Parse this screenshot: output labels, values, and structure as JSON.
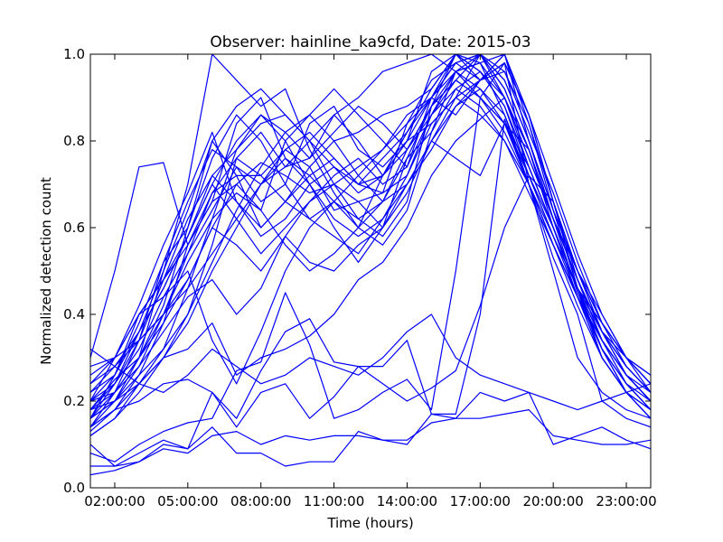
{
  "chart_data": {
    "type": "line",
    "title": "Observer: hainline_ka9cfd, Date: 2015-03",
    "xlabel": "Time (hours)",
    "ylabel": "Normalized detection count",
    "xlim": [
      "01:00:00",
      "24:00:00"
    ],
    "ylim": [
      0.0,
      1.0
    ],
    "x_ticks": [
      "02:00:00",
      "05:00:00",
      "08:00:00",
      "11:00:00",
      "14:00:00",
      "17:00:00",
      "20:00:00",
      "23:00:00"
    ],
    "y_ticks": [
      "0.0",
      "0.2",
      "0.4",
      "0.6",
      "0.8",
      "1.0"
    ],
    "grid": false,
    "legend": "none",
    "series_color": "#0000ff",
    "x": [
      "00:00:00",
      "01:00:00",
      "02:00:00",
      "03:00:00",
      "04:00:00",
      "05:00:00",
      "06:00:00",
      "07:00:00",
      "08:00:00",
      "09:00:00",
      "10:00:00",
      "11:00:00",
      "12:00:00",
      "13:00:00",
      "14:00:00",
      "15:00:00",
      "16:00:00",
      "17:00:00",
      "18:00:00",
      "19:00:00",
      "20:00:00",
      "21:00:00",
      "22:00:00",
      "23:00:00",
      "24:00:00"
    ],
    "series": [
      {
        "values": [
          0.06,
          0.03,
          0.04,
          0.06,
          0.09,
          0.08,
          0.12,
          0.13,
          0.1,
          0.12,
          0.11,
          0.12,
          0.12,
          0.11,
          0.1,
          0.17,
          0.16,
          0.16,
          0.17,
          0.18,
          0.12,
          0.11,
          0.1,
          0.1,
          0.11
        ]
      },
      {
        "values": [
          0.05,
          0.05,
          0.05,
          0.08,
          0.11,
          0.09,
          0.14,
          0.08,
          0.08,
          0.05,
          0.06,
          0.06,
          0.13,
          0.11,
          0.11,
          0.15,
          0.16,
          0.22,
          0.2,
          0.22,
          0.1,
          0.12,
          0.14,
          0.11,
          0.09
        ]
      },
      {
        "values": [
          0.1,
          0.08,
          0.06,
          0.1,
          0.13,
          0.15,
          0.16,
          0.27,
          0.29,
          0.45,
          0.33,
          0.16,
          0.18,
          0.22,
          0.25,
          0.18,
          0.5,
          0.9,
          0.98,
          0.7,
          0.53,
          0.4,
          0.2,
          0.16,
          0.14
        ]
      },
      {
        "values": [
          0.12,
          0.1,
          0.05,
          0.06,
          0.1,
          0.09,
          0.22,
          0.14,
          0.22,
          0.24,
          0.16,
          0.21,
          0.28,
          0.28,
          0.34,
          0.17,
          0.17,
          0.4,
          0.85,
          0.7,
          0.5,
          0.3,
          0.22,
          0.18,
          0.16
        ]
      },
      {
        "values": [
          0.15,
          0.13,
          0.18,
          0.2,
          0.24,
          0.25,
          0.22,
          0.16,
          0.27,
          0.36,
          0.39,
          0.29,
          0.28,
          0.24,
          0.2,
          0.23,
          0.27,
          0.42,
          0.6,
          0.72,
          0.66,
          0.46,
          0.3,
          0.22,
          0.18
        ]
      },
      {
        "values": [
          0.2,
          0.16,
          0.2,
          0.24,
          0.3,
          0.32,
          0.38,
          0.26,
          0.3,
          0.32,
          0.35,
          0.4,
          0.48,
          0.52,
          0.6,
          0.72,
          0.8,
          0.85,
          0.9,
          0.78,
          0.62,
          0.45,
          0.32,
          0.24,
          0.2
        ]
      },
      {
        "values": [
          0.28,
          0.22,
          0.28,
          0.34,
          0.4,
          0.48,
          0.6,
          0.7,
          0.75,
          0.72,
          0.68,
          0.7,
          0.74,
          0.78,
          0.84,
          0.9,
          0.96,
          0.98,
          1.0,
          0.86,
          0.66,
          0.48,
          0.34,
          0.26,
          0.22
        ]
      },
      {
        "values": [
          0.38,
          0.3,
          0.5,
          0.74,
          0.75,
          0.56,
          0.68,
          0.72,
          0.72,
          0.78,
          0.74,
          0.64,
          0.66,
          0.68,
          0.72,
          0.86,
          0.96,
          1.0,
          0.92,
          0.78,
          0.6,
          0.44,
          0.3,
          0.22,
          0.16
        ]
      },
      {
        "values": [
          0.2,
          0.18,
          0.25,
          0.3,
          0.4,
          0.52,
          0.62,
          0.68,
          0.64,
          0.8,
          0.86,
          0.92,
          0.86,
          0.8,
          0.74,
          0.9,
          0.98,
          0.94,
          0.96,
          0.84,
          0.64,
          0.5,
          0.4,
          0.3,
          0.24
        ]
      },
      {
        "values": [
          0.22,
          0.16,
          0.26,
          0.4,
          0.48,
          0.58,
          0.72,
          0.78,
          0.84,
          0.86,
          0.8,
          0.7,
          0.62,
          0.58,
          0.66,
          0.88,
          1.0,
          0.96,
          0.88,
          0.72,
          0.58,
          0.44,
          0.34,
          0.26,
          0.2
        ]
      },
      {
        "values": [
          0.18,
          0.2,
          0.22,
          0.3,
          0.5,
          0.7,
          1.0,
          0.94,
          0.88,
          0.92,
          0.78,
          0.68,
          0.6,
          0.72,
          0.8,
          0.9,
          1.0,
          0.98,
          0.86,
          0.7,
          0.56,
          0.42,
          0.3,
          0.22,
          0.18
        ]
      },
      {
        "values": [
          0.16,
          0.14,
          0.18,
          0.26,
          0.38,
          0.56,
          0.66,
          0.84,
          0.9,
          0.76,
          0.72,
          0.76,
          0.7,
          0.68,
          0.84,
          0.94,
          0.98,
          1.0,
          0.9,
          0.74,
          0.6,
          0.46,
          0.32,
          0.24,
          0.18
        ]
      },
      {
        "values": [
          0.24,
          0.2,
          0.24,
          0.34,
          0.52,
          0.6,
          0.8,
          0.72,
          0.6,
          0.66,
          0.74,
          0.8,
          0.82,
          0.86,
          0.88,
          0.92,
          1.0,
          0.94,
          1.0,
          0.8,
          0.62,
          0.5,
          0.36,
          0.28,
          0.22
        ]
      },
      {
        "values": [
          0.14,
          0.12,
          0.16,
          0.24,
          0.32,
          0.46,
          0.62,
          0.78,
          0.86,
          0.8,
          0.7,
          0.6,
          0.52,
          0.6,
          0.76,
          0.88,
          0.96,
          0.92,
          0.86,
          0.72,
          0.58,
          0.46,
          0.38,
          0.3,
          0.26
        ]
      },
      {
        "values": [
          0.3,
          0.26,
          0.3,
          0.4,
          0.44,
          0.5,
          0.34,
          0.24,
          0.36,
          0.5,
          0.6,
          0.66,
          0.62,
          0.66,
          0.76,
          0.82,
          0.92,
          0.96,
          0.9,
          0.76,
          0.62,
          0.48,
          0.36,
          0.26,
          0.2
        ]
      },
      {
        "values": [
          0.26,
          0.2,
          0.3,
          0.42,
          0.56,
          0.68,
          0.82,
          0.66,
          0.58,
          0.62,
          0.7,
          0.74,
          0.68,
          0.72,
          0.8,
          0.96,
          1.0,
          1.0,
          0.94,
          0.8,
          0.64,
          0.46,
          0.32,
          0.24,
          0.18
        ]
      },
      {
        "values": [
          0.2,
          0.18,
          0.2,
          0.26,
          0.32,
          0.4,
          0.56,
          0.76,
          0.82,
          0.74,
          0.76,
          0.86,
          0.9,
          0.96,
          0.98,
          1.0,
          0.96,
          0.9,
          0.82,
          0.7,
          0.56,
          0.44,
          0.3,
          0.22,
          0.16
        ]
      },
      {
        "values": [
          0.18,
          0.16,
          0.22,
          0.28,
          0.36,
          0.44,
          0.48,
          0.4,
          0.46,
          0.58,
          0.52,
          0.5,
          0.56,
          0.6,
          0.7,
          0.8,
          0.76,
          0.72,
          0.84,
          0.78,
          0.62,
          0.48,
          0.36,
          0.28,
          0.22
        ]
      },
      {
        "values": [
          0.22,
          0.18,
          0.24,
          0.32,
          0.44,
          0.54,
          0.64,
          0.74,
          0.66,
          0.7,
          0.84,
          0.88,
          0.78,
          0.74,
          0.8,
          0.84,
          0.9,
          1.0,
          0.96,
          0.82,
          0.68,
          0.52,
          0.38,
          0.3,
          0.24
        ]
      },
      {
        "values": [
          0.16,
          0.14,
          0.2,
          0.3,
          0.42,
          0.6,
          0.76,
          0.86,
          0.8,
          0.7,
          0.62,
          0.58,
          0.54,
          0.62,
          0.7,
          0.78,
          0.88,
          0.94,
          0.98,
          0.86,
          0.7,
          0.54,
          0.4,
          0.3,
          0.22
        ]
      },
      {
        "values": [
          0.24,
          0.22,
          0.26,
          0.36,
          0.46,
          0.58,
          0.7,
          0.62,
          0.54,
          0.6,
          0.66,
          0.72,
          0.76,
          0.7,
          0.74,
          0.86,
          0.92,
          0.88,
          0.8,
          0.68,
          0.56,
          0.44,
          0.34,
          0.26,
          0.2
        ]
      },
      {
        "values": [
          0.2,
          0.16,
          0.24,
          0.36,
          0.5,
          0.64,
          0.8,
          0.88,
          0.92,
          0.86,
          0.8,
          0.74,
          0.7,
          0.76,
          0.82,
          0.9,
          0.98,
          1.0,
          0.92,
          0.78,
          0.62,
          0.48,
          0.34,
          0.26,
          0.2
        ]
      },
      {
        "values": [
          0.26,
          0.24,
          0.3,
          0.4,
          0.48,
          0.56,
          0.66,
          0.7,
          0.64,
          0.56,
          0.5,
          0.54,
          0.6,
          0.66,
          0.78,
          0.88,
          0.94,
          0.9,
          0.84,
          0.74,
          0.6,
          0.46,
          0.34,
          0.24,
          0.18
        ]
      },
      {
        "values": [
          0.18,
          0.14,
          0.18,
          0.24,
          0.3,
          0.38,
          0.5,
          0.6,
          0.7,
          0.78,
          0.82,
          0.76,
          0.7,
          0.72,
          0.82,
          0.92,
          1.0,
          0.96,
          0.88,
          0.74,
          0.6,
          0.46,
          0.32,
          0.22,
          0.16
        ]
      },
      {
        "values": [
          0.32,
          0.28,
          0.3,
          0.34,
          0.4,
          0.46,
          0.54,
          0.62,
          0.7,
          0.76,
          0.7,
          0.62,
          0.58,
          0.62,
          0.72,
          0.84,
          0.9,
          0.86,
          0.8,
          0.7,
          0.58,
          0.46,
          0.36,
          0.3,
          0.26
        ]
      },
      {
        "values": [
          0.14,
          0.12,
          0.16,
          0.22,
          0.3,
          0.4,
          0.52,
          0.64,
          0.74,
          0.82,
          0.86,
          0.8,
          0.72,
          0.66,
          0.7,
          0.8,
          0.88,
          0.92,
          0.84,
          0.7,
          0.56,
          0.44,
          0.32,
          0.22,
          0.16
        ]
      },
      {
        "values": [
          0.22,
          0.18,
          0.22,
          0.3,
          0.38,
          0.48,
          0.6,
          0.56,
          0.5,
          0.58,
          0.66,
          0.7,
          0.66,
          0.6,
          0.68,
          0.8,
          0.9,
          0.94,
          0.98,
          0.86,
          0.66,
          0.5,
          0.38,
          0.3,
          0.24
        ]
      },
      {
        "values": [
          0.28,
          0.24,
          0.28,
          0.36,
          0.46,
          0.58,
          0.7,
          0.8,
          0.86,
          0.82,
          0.76,
          0.82,
          0.88,
          0.84,
          0.78,
          0.86,
          0.94,
          1.0,
          0.94,
          0.8,
          0.64,
          0.5,
          0.38,
          0.28,
          0.22
        ]
      },
      {
        "values": [
          0.16,
          0.14,
          0.22,
          0.34,
          0.48,
          0.62,
          0.72,
          0.66,
          0.6,
          0.66,
          0.72,
          0.66,
          0.6,
          0.56,
          0.64,
          0.82,
          0.96,
          0.98,
          0.9,
          0.76,
          0.62,
          0.48,
          0.36,
          0.26,
          0.2
        ]
      },
      {
        "values": [
          0.24,
          0.2,
          0.26,
          0.38,
          0.52,
          0.66,
          0.78,
          0.74,
          0.7,
          0.74,
          0.8,
          0.86,
          0.8,
          0.72,
          0.78,
          0.88,
          0.94,
          0.9,
          0.84,
          0.72,
          0.6,
          0.46,
          0.34,
          0.26,
          0.2
        ]
      },
      {
        "values": [
          0.2,
          0.16,
          0.2,
          0.28,
          0.4,
          0.54,
          0.68,
          0.76,
          0.72,
          0.66,
          0.62,
          0.66,
          0.72,
          0.78,
          0.86,
          0.9,
          0.86,
          0.94,
          1.0,
          0.84,
          0.66,
          0.5,
          0.36,
          0.28,
          0.22
        ]
      },
      {
        "values": [
          0.36,
          0.32,
          0.28,
          0.24,
          0.22,
          0.26,
          0.32,
          0.28,
          0.24,
          0.26,
          0.3,
          0.28,
          0.26,
          0.3,
          0.36,
          0.4,
          0.3,
          0.26,
          0.24,
          0.22,
          0.2,
          0.18,
          0.2,
          0.22,
          0.24
        ]
      }
    ]
  }
}
